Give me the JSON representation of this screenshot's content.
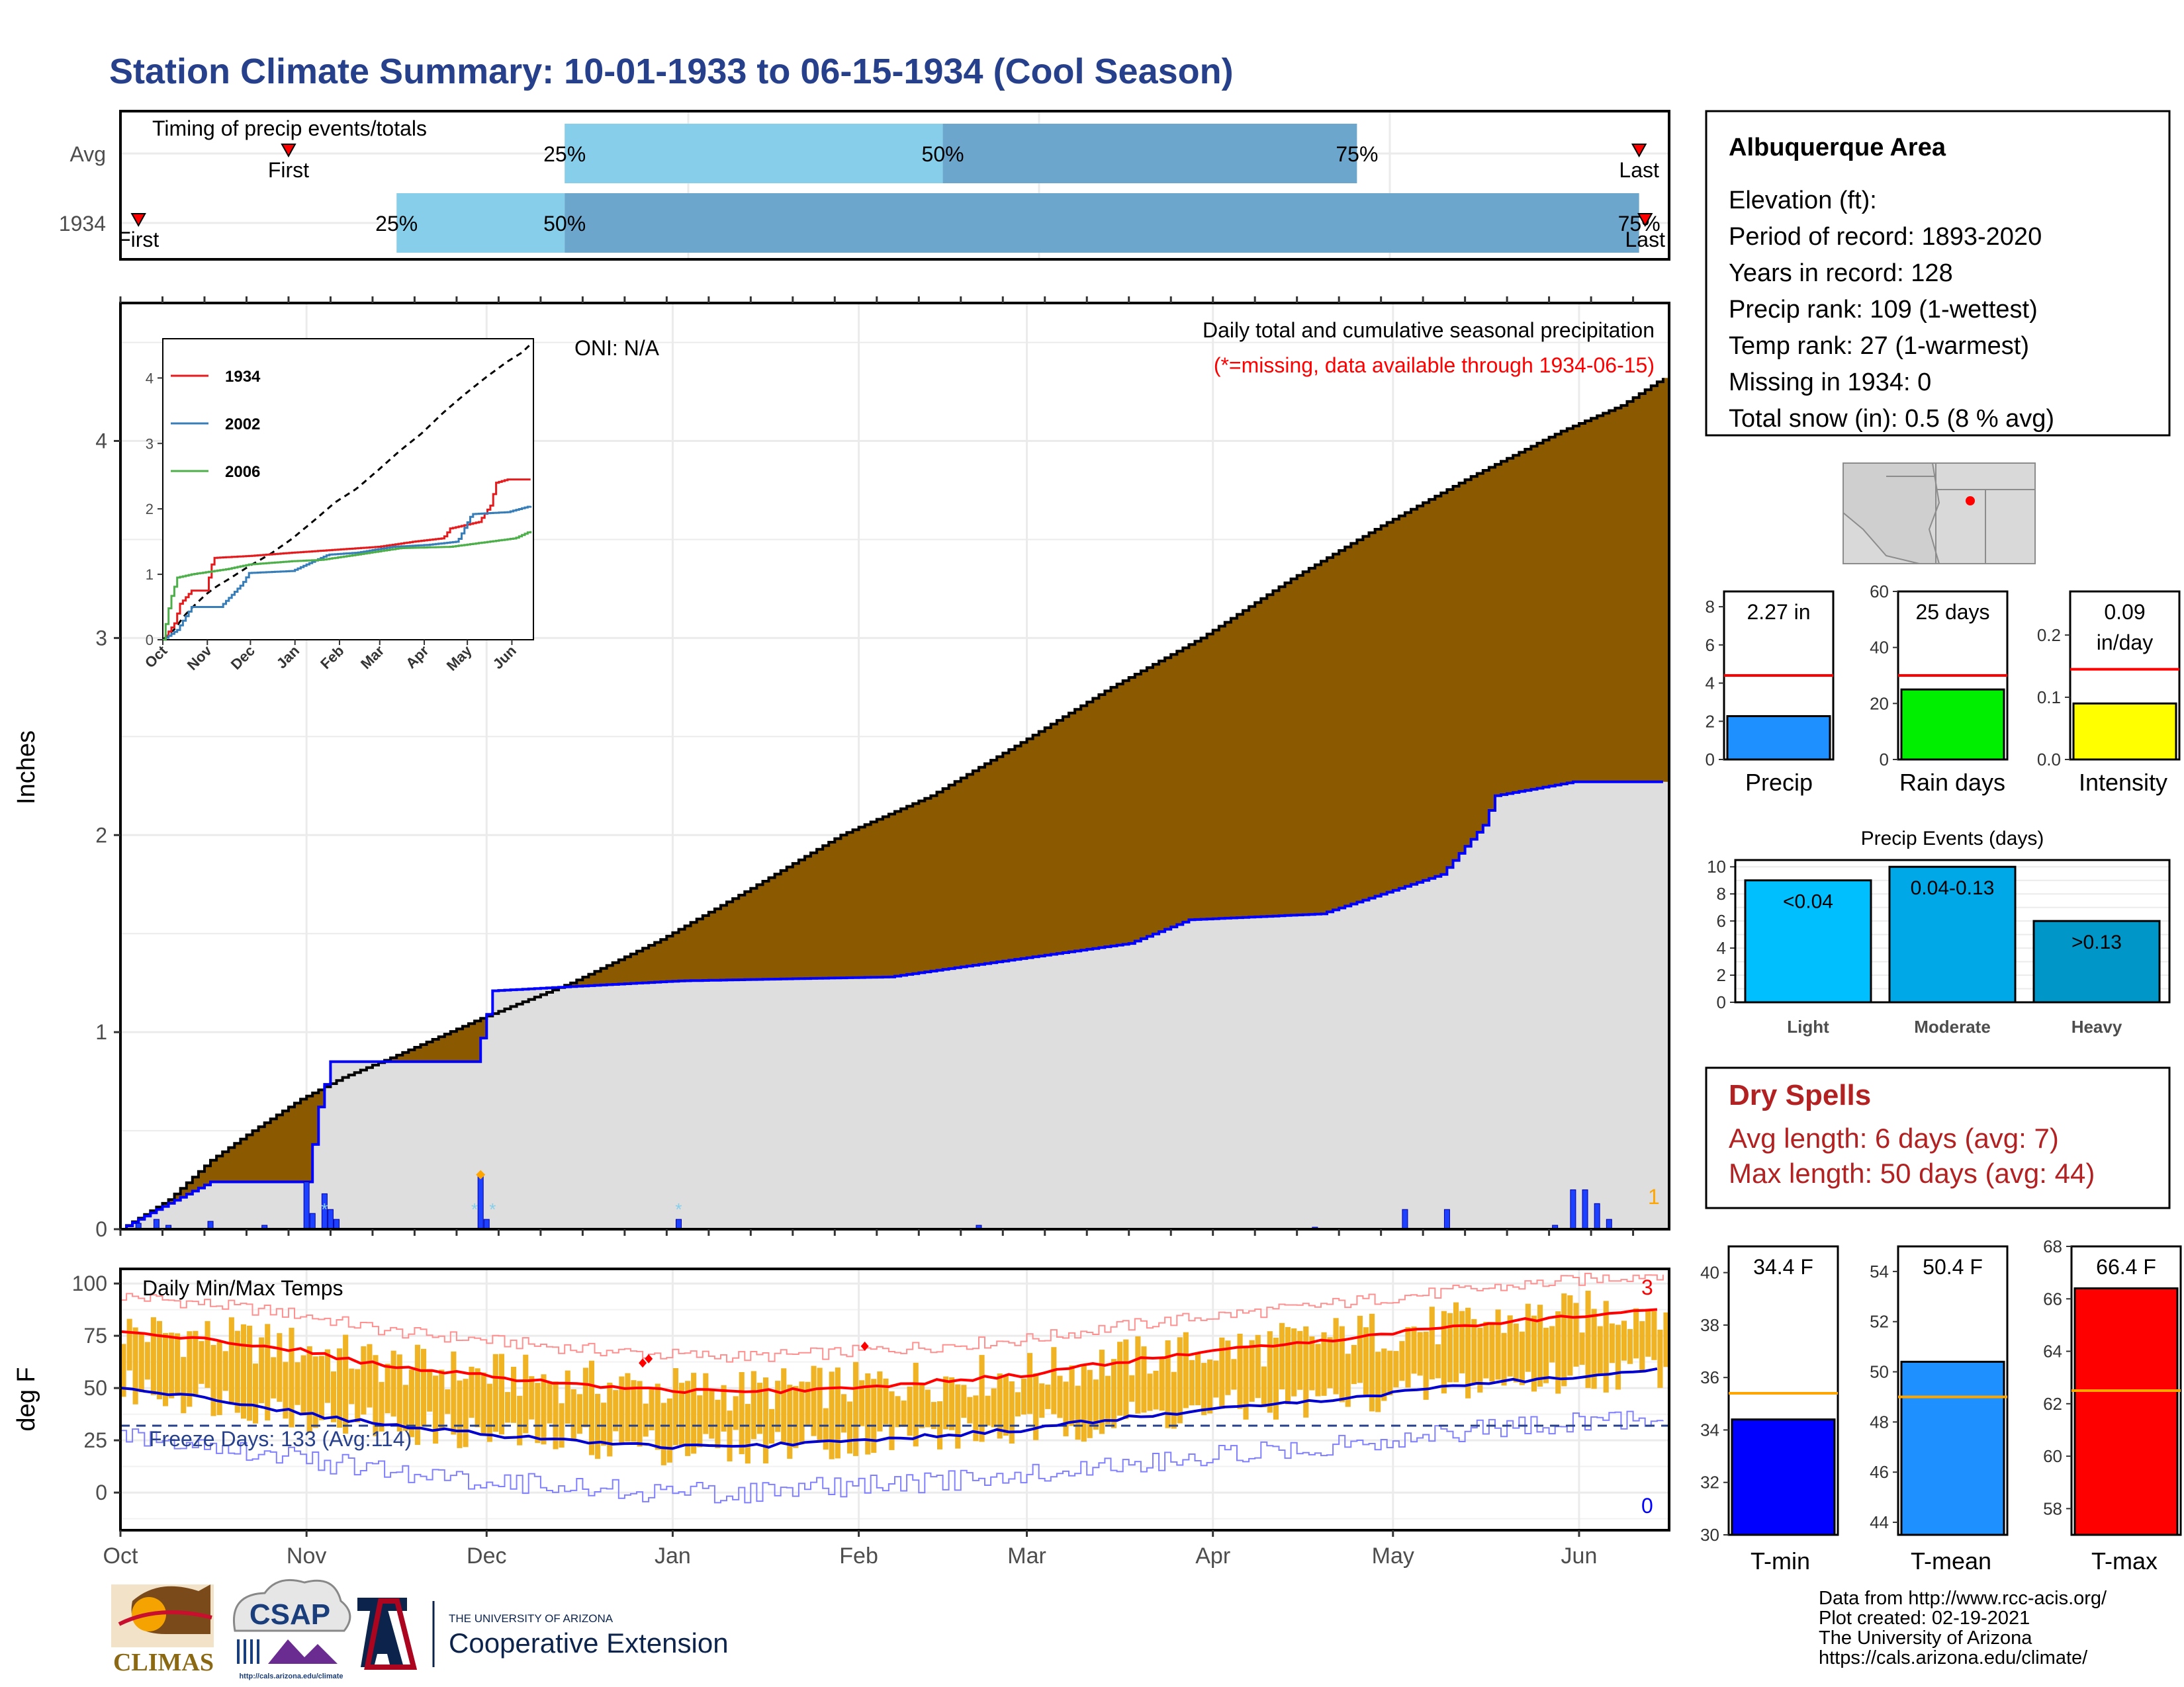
{
  "header": {
    "title": "Station Climate Summary: 10-01-1933 to 06-15-1934 (Cool Season)"
  },
  "timing": {
    "title": "Timing of precip events/totals",
    "rows": [
      {
        "label": "Avg",
        "first_label": "First",
        "last_label": "Last",
        "p25": "25%",
        "p50": "50%",
        "p75": "75%",
        "first_day": 28,
        "p25_day": 74,
        "p50_day": 137,
        "p75_day": 206,
        "last_day": 253
      },
      {
        "label": "1934",
        "first_label": "First",
        "last_label": "Last",
        "p25": "25%",
        "p50": "50%",
        "p75": "75%",
        "first_day": 3,
        "p25_day": 46,
        "p50_day": 74,
        "p75_day": 253,
        "last_day": 254
      }
    ]
  },
  "info": {
    "station": "Albuquerque Area",
    "lines": [
      "Elevation (ft):",
      "Period of record: 1893-2020",
      "Years in record: 128",
      "Precip rank: 109 (1-wettest)",
      "Temp rank: 27 (1-warmest)",
      "Missing in 1934: 0",
      "Total snow (in): 0.5 (8 % avg)"
    ]
  },
  "precip_panel": {
    "ylabel": "Inches",
    "oni": "ONI: N/A",
    "title": "Daily total and cumulative seasonal precipitation",
    "subtitle": "(*=missing, data available through 1934-06-15)",
    "corner_count": "1",
    "months": [
      "Oct",
      "Nov",
      "Dec",
      "Jan",
      "Feb",
      "Mar",
      "Apr",
      "May",
      "Jun"
    ],
    "yticks": [
      "0",
      "1",
      "2",
      "3",
      "4"
    ]
  },
  "inset": {
    "legend": [
      {
        "name": "1934",
        "color": "#e41a1c"
      },
      {
        "name": "2002",
        "color": "#377eb8"
      },
      {
        "name": "2006",
        "color": "#4daf4a"
      }
    ],
    "months": [
      "Oct",
      "Nov",
      "Dec",
      "Jan",
      "Feb",
      "Mar",
      "Apr",
      "May",
      "Jun"
    ],
    "yticks": [
      "0",
      "1",
      "2",
      "3",
      "4"
    ]
  },
  "temp_panel": {
    "ylabel": "deg F",
    "title": "Daily Min/Max Temps",
    "freeze": "Freeze Days: 133 (Avg:114)",
    "record_high_count": "3",
    "record_low_count": "0",
    "yticks": [
      "0",
      "25",
      "50",
      "75",
      "100"
    ]
  },
  "precip_bars": {
    "ylabels": [
      "Precip",
      "Rain days",
      "Intensity"
    ],
    "values_text": [
      "2.27 in",
      "25 days",
      "0.09 in/day"
    ],
    "precip": {
      "value": 2.27,
      "avg": 4.4,
      "ymax": 8.8,
      "ticks": [
        "0",
        "2",
        "4",
        "6",
        "8"
      ],
      "color": "#1e90ff"
    },
    "raindays": {
      "value": 25,
      "avg": 30,
      "ymax": 60,
      "ticks": [
        "0",
        "20",
        "40",
        "60"
      ],
      "color": "#00ee00"
    },
    "intensity": {
      "value": 0.09,
      "avg": 0.145,
      "ymax": 0.27,
      "ticks": [
        "0.0",
        "0.1",
        "0.2"
      ],
      "color": "#ffff00"
    }
  },
  "events": {
    "title": "Precip Events (days)",
    "categories": [
      "Light",
      "Moderate",
      "Heavy"
    ],
    "values": [
      9,
      10,
      6
    ],
    "labels": [
      "<0.04",
      "0.04-0.13",
      ">0.13"
    ],
    "ticks": [
      "0",
      "2",
      "4",
      "6",
      "8",
      "10"
    ],
    "colors": [
      "#00bfff",
      "#00a8e8",
      "#0096c8"
    ]
  },
  "dry_spells": {
    "title": "Dry Spells",
    "avg": "Avg length: 6 days (avg: 7)",
    "max": "Max length: 50 days (avg: 44)"
  },
  "temp_bars": {
    "labels": [
      "T-min",
      "T-mean",
      "T-max"
    ],
    "values_text": [
      "34.4 F",
      "50.4 F",
      "66.4 F"
    ],
    "tmin": {
      "value": 34.4,
      "avg": 35.4,
      "min": 30,
      "max": 41,
      "ticks": [
        "30",
        "32",
        "34",
        "36",
        "38",
        "40"
      ],
      "color": "#0000ff"
    },
    "tmean": {
      "value": 50.4,
      "avg": 49,
      "min": 43.5,
      "max": 55,
      "ticks": [
        "44",
        "46",
        "48",
        "50",
        "52",
        "54"
      ],
      "color": "#1e90ff"
    },
    "tmax": {
      "value": 66.4,
      "avg": 62.5,
      "min": 57,
      "max": 68,
      "ticks": [
        "58",
        "60",
        "62",
        "64",
        "66",
        "68"
      ],
      "color": "#ff0000"
    }
  },
  "footer": {
    "credits": [
      "Data from http://www.rcc-acis.org/",
      "Plot created: 02-19-2021",
      "The University of Arizona",
      "https://cals.arizona.edu/climate/"
    ],
    "logo1": "CLIMAS",
    "logo2": "CSAP",
    "logo2_url": "http://cals.arizona.edu/climate",
    "ua_small": "THE UNIVERSITY OF ARIZONA",
    "ua_big": "Cooperative Extension"
  },
  "chart_data": [
    {
      "type": "area",
      "title": "Daily total and cumulative seasonal precipitation",
      "ylabel": "Inches",
      "x_unit": "day of season (Oct 1 = 0)",
      "ylim": [
        0,
        4.7
      ],
      "series": [
        {
          "name": "",
          "x": [
            0,
            8,
            15,
            22,
            30,
            37,
            45,
            60,
            75,
            90,
            105,
            120,
            135,
            150,
            165,
            180,
            195,
            210,
            225,
            240,
            250,
            257
          ],
          "values": [
            0,
            0.15,
            0.35,
            0.5,
            0.66,
            0.77,
            0.87,
            1.07,
            1.25,
            1.47,
            1.73,
            2.0,
            2.2,
            2.47,
            2.75,
            3.0,
            3.3,
            3.57,
            3.82,
            4.05,
            4.18,
            4.32
          ]
        },
        {
          "name": "",
          "x": [
            0,
            3,
            6,
            15,
            31,
            33,
            35,
            59,
            62,
            93,
            128,
            168,
            178,
            200,
            220,
            227,
            229,
            242,
            245,
            257
          ],
          "values": [
            0,
            0.05,
            0.1,
            0.24,
            0.24,
            0.62,
            0.85,
            0.85,
            1.21,
            1.26,
            1.28,
            1.45,
            1.57,
            1.6,
            1.8,
            2.05,
            2.2,
            2.27,
            2.27,
            2.27
          ]
        }
      ],
      "daily_precip": {
        "x": [
          3,
          6,
          8,
          15,
          24,
          31,
          32,
          34,
          35,
          36,
          60,
          61,
          93,
          143,
          199,
          214,
          221,
          239,
          242,
          244,
          246,
          248
        ],
        "values": [
          0.03,
          0.05,
          0.02,
          0.04,
          0.02,
          0.24,
          0.08,
          0.18,
          0.1,
          0.05,
          0.27,
          0.05,
          0.05,
          0.02,
          0.01,
          0.1,
          0.1,
          0.02,
          0.2,
          0.2,
          0.13,
          0.05
        ]
      }
    },
    {
      "type": "line",
      "title": "Daily Min/Max Temps",
      "ylabel": "deg F",
      "ylim": [
        -18,
        107
      ],
      "x": [
        0,
        15,
        30,
        45,
        60,
        75,
        90,
        105,
        120,
        135,
        150,
        165,
        180,
        195,
        210,
        225,
        240,
        257
      ],
      "series": [
        {
          "name": "",
          "values": [
            77,
            73,
            68,
            60,
            56,
            52,
            49,
            48,
            50,
            53,
            56,
            62,
            67,
            71,
            76,
            80,
            84,
            88
          ]
        },
        {
          "name": "",
          "values": [
            50,
            45,
            38,
            32,
            28,
            25,
            22,
            22,
            25,
            27,
            30,
            35,
            39,
            43,
            47,
            52,
            55,
            59
          ]
        }
      ]
    },
    {
      "type": "bar",
      "categories": [
        "Precip",
        "Rain days",
        "Intensity"
      ],
      "values": [
        2.27,
        25,
        0.09
      ],
      "averages": [
        4.4,
        30,
        0.145
      ]
    },
    {
      "type": "bar",
      "title": "Precip Events (days)",
      "categories": [
        "Light",
        "Moderate",
        "Heavy"
      ],
      "values": [
        9,
        10,
        6
      ]
    },
    {
      "type": "bar",
      "categories": [
        "T-min",
        "T-mean",
        "T-max"
      ],
      "values": [
        34.4,
        50.4,
        66.4
      ],
      "averages": [
        35.4,
        49,
        62.5
      ]
    }
  ]
}
